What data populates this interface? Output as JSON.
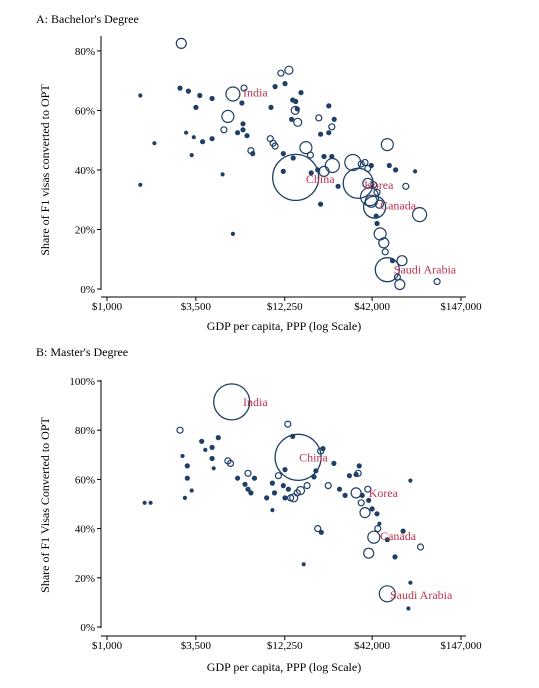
{
  "chart_data": [
    {
      "type": "scatter",
      "panel_title": "A: Bachelor's Degree",
      "xlabel": "GDP per capita, PPP (log Scale)",
      "ylabel": "Share of F1 visas converted to OPT",
      "x_scale": "log",
      "xlim": [
        1000,
        147000
      ],
      "ylim": [
        0,
        0.85
      ],
      "x_ticks": [
        1000,
        3500,
        12250,
        42000,
        147000
      ],
      "x_tick_labels": [
        "$1,000",
        "$3,500",
        "$12,250",
        "$42,000",
        "$147,000"
      ],
      "y_ticks": [
        0,
        0.2,
        0.4,
        0.6,
        0.8
      ],
      "y_tick_labels": [
        "0%",
        "20%",
        "40%",
        "60%",
        "80%"
      ],
      "bubble_size": "number of F1 visas",
      "marker_color": "#1f3f66",
      "label_color": "#c0334d",
      "labels": [
        {
          "text": "India",
          "x": 6800,
          "y": 0.66
        },
        {
          "text": "China",
          "x": 16500,
          "y": 0.37
        },
        {
          "text": "Korea",
          "x": 37500,
          "y": 0.35
        },
        {
          "text": "Canada",
          "x": 47000,
          "y": 0.28
        },
        {
          "text": "Saudi Arabia",
          "x": 57000,
          "y": 0.065
        }
      ],
      "points": [
        {
          "x": 2850,
          "y": 0.825,
          "r": 5
        },
        {
          "x": 1600,
          "y": 0.65,
          "r": 1.5
        },
        {
          "x": 1950,
          "y": 0.49,
          "r": 1.5
        },
        {
          "x": 1600,
          "y": 0.35,
          "r": 1.5
        },
        {
          "x": 2800,
          "y": 0.675,
          "r": 2
        },
        {
          "x": 3150,
          "y": 0.665,
          "r": 2
        },
        {
          "x": 3700,
          "y": 0.65,
          "r": 2
        },
        {
          "x": 4400,
          "y": 0.64,
          "r": 2
        },
        {
          "x": 3500,
          "y": 0.61,
          "r": 2
        },
        {
          "x": 3050,
          "y": 0.525,
          "r": 1.5
        },
        {
          "x": 3400,
          "y": 0.51,
          "r": 1.5
        },
        {
          "x": 3850,
          "y": 0.495,
          "r": 2
        },
        {
          "x": 3300,
          "y": 0.45,
          "r": 1.5
        },
        {
          "x": 4400,
          "y": 0.505,
          "r": 2
        },
        {
          "x": 5100,
          "y": 0.385,
          "r": 1.5
        },
        {
          "x": 5900,
          "y": 0.185,
          "r": 1.5
        },
        {
          "x": 5200,
          "y": 0.535,
          "r": 3
        },
        {
          "x": 5500,
          "y": 0.58,
          "r": 6
        },
        {
          "x": 5900,
          "y": 0.655,
          "r": 7
        },
        {
          "x": 6900,
          "y": 0.675,
          "r": 3
        },
        {
          "x": 6700,
          "y": 0.625,
          "r": 2
        },
        {
          "x": 6300,
          "y": 0.525,
          "r": 2
        },
        {
          "x": 6800,
          "y": 0.535,
          "r": 2
        },
        {
          "x": 7200,
          "y": 0.515,
          "r": 2
        },
        {
          "x": 6800,
          "y": 0.555,
          "r": 2
        },
        {
          "x": 7600,
          "y": 0.465,
          "r": 3
        },
        {
          "x": 7800,
          "y": 0.455,
          "r": 2
        },
        {
          "x": 10000,
          "y": 0.505,
          "r": 3
        },
        {
          "x": 10400,
          "y": 0.49,
          "r": 3
        },
        {
          "x": 10700,
          "y": 0.48,
          "r": 3
        },
        {
          "x": 10100,
          "y": 0.61,
          "r": 2
        },
        {
          "x": 10700,
          "y": 0.68,
          "r": 2
        },
        {
          "x": 12300,
          "y": 0.69,
          "r": 2
        },
        {
          "x": 11600,
          "y": 0.725,
          "r": 3
        },
        {
          "x": 13000,
          "y": 0.735,
          "r": 4
        },
        {
          "x": 13700,
          "y": 0.635,
          "r": 2
        },
        {
          "x": 14300,
          "y": 0.63,
          "r": 2
        },
        {
          "x": 14200,
          "y": 0.6,
          "r": 4
        },
        {
          "x": 14600,
          "y": 0.605,
          "r": 2
        },
        {
          "x": 13500,
          "y": 0.57,
          "r": 2
        },
        {
          "x": 14700,
          "y": 0.56,
          "r": 4
        },
        {
          "x": 15400,
          "y": 0.66,
          "r": 2
        },
        {
          "x": 12000,
          "y": 0.455,
          "r": 2
        },
        {
          "x": 13800,
          "y": 0.44,
          "r": 2
        },
        {
          "x": 12000,
          "y": 0.395,
          "r": 2
        },
        {
          "x": 16500,
          "y": 0.475,
          "r": 6
        },
        {
          "x": 17600,
          "y": 0.45,
          "r": 3
        },
        {
          "x": 19800,
          "y": 0.575,
          "r": 3
        },
        {
          "x": 20300,
          "y": 0.52,
          "r": 2
        },
        {
          "x": 22800,
          "y": 0.615,
          "r": 2
        },
        {
          "x": 23800,
          "y": 0.545,
          "r": 3
        },
        {
          "x": 22800,
          "y": 0.525,
          "r": 2
        },
        {
          "x": 21300,
          "y": 0.445,
          "r": 2
        },
        {
          "x": 23800,
          "y": 0.445,
          "r": 2
        },
        {
          "x": 24600,
          "y": 0.57,
          "r": 2
        },
        {
          "x": 14300,
          "y": 0.375,
          "r": 23
        },
        {
          "x": 17800,
          "y": 0.39,
          "r": 2
        },
        {
          "x": 19500,
          "y": 0.4,
          "r": 2
        },
        {
          "x": 21300,
          "y": 0.395,
          "r": 5
        },
        {
          "x": 24000,
          "y": 0.415,
          "r": 7
        },
        {
          "x": 20300,
          "y": 0.285,
          "r": 2
        },
        {
          "x": 26000,
          "y": 0.345,
          "r": 2
        },
        {
          "x": 32000,
          "y": 0.425,
          "r": 8
        },
        {
          "x": 36000,
          "y": 0.42,
          "r": 3
        },
        {
          "x": 38000,
          "y": 0.425,
          "r": 3
        },
        {
          "x": 39500,
          "y": 0.405,
          "r": 3
        },
        {
          "x": 41500,
          "y": 0.415,
          "r": 2
        },
        {
          "x": 34500,
          "y": 0.355,
          "r": 15
        },
        {
          "x": 39500,
          "y": 0.355,
          "r": 5
        },
        {
          "x": 43000,
          "y": 0.35,
          "r": 3
        },
        {
          "x": 45000,
          "y": 0.325,
          "r": 3
        },
        {
          "x": 40500,
          "y": 0.31,
          "r": 9
        },
        {
          "x": 41500,
          "y": 0.295,
          "r": 6
        },
        {
          "x": 43500,
          "y": 0.275,
          "r": 11
        },
        {
          "x": 46500,
          "y": 0.285,
          "r": 4
        },
        {
          "x": 44500,
          "y": 0.245,
          "r": 2
        },
        {
          "x": 45000,
          "y": 0.22,
          "r": 2
        },
        {
          "x": 47000,
          "y": 0.185,
          "r": 6
        },
        {
          "x": 52000,
          "y": 0.485,
          "r": 6
        },
        {
          "x": 53500,
          "y": 0.415,
          "r": 2
        },
        {
          "x": 58500,
          "y": 0.4,
          "r": 2
        },
        {
          "x": 49500,
          "y": 0.155,
          "r": 5
        },
        {
          "x": 50500,
          "y": 0.125,
          "r": 3
        },
        {
          "x": 52000,
          "y": 0.065,
          "r": 12
        },
        {
          "x": 56000,
          "y": 0.095,
          "r": 2
        },
        {
          "x": 67500,
          "y": 0.345,
          "r": 3
        },
        {
          "x": 77000,
          "y": 0.395,
          "r": 1.5
        },
        {
          "x": 64000,
          "y": 0.095,
          "r": 5
        },
        {
          "x": 60000,
          "y": 0.04,
          "r": 3
        },
        {
          "x": 82000,
          "y": 0.25,
          "r": 7
        },
        {
          "x": 62000,
          "y": 0.015,
          "r": 5
        },
        {
          "x": 105000,
          "y": 0.025,
          "r": 3
        }
      ]
    },
    {
      "type": "scatter",
      "panel_title": "B: Master's Degree",
      "xlabel": "GDP per capita, PPP (log Scale)",
      "ylabel": "Share of F1 Visas Converted to OPT",
      "x_scale": "log",
      "xlim": [
        1000,
        147000
      ],
      "ylim": [
        0,
        1.0
      ],
      "x_ticks": [
        1000,
        3500,
        12250,
        42000,
        147000
      ],
      "x_tick_labels": [
        "$1,000",
        "$3,500",
        "$12,250",
        "$42,000",
        "$147,000"
      ],
      "y_ticks": [
        0,
        0.2,
        0.4,
        0.6,
        0.8,
        1.0
      ],
      "y_tick_labels": [
        "0%",
        "20%",
        "40%",
        "60%",
        "80%",
        "100%"
      ],
      "bubble_size": "number of F1 visas",
      "marker_color": "#1f3f66",
      "label_color": "#c0334d",
      "labels": [
        {
          "text": "India",
          "x": 6800,
          "y": 0.915
        },
        {
          "text": "China",
          "x": 15000,
          "y": 0.69
        },
        {
          "text": "Korea",
          "x": 40000,
          "y": 0.545
        },
        {
          "text": "Canada",
          "x": 47000,
          "y": 0.37
        },
        {
          "text": "Saudi Arabia",
          "x": 54000,
          "y": 0.13
        }
      ],
      "points": [
        {
          "x": 5800,
          "y": 0.915,
          "r": 18
        },
        {
          "x": 2800,
          "y": 0.8,
          "r": 3
        },
        {
          "x": 2900,
          "y": 0.695,
          "r": 1.5
        },
        {
          "x": 3800,
          "y": 0.755,
          "r": 2
        },
        {
          "x": 4400,
          "y": 0.73,
          "r": 2
        },
        {
          "x": 3100,
          "y": 0.655,
          "r": 2
        },
        {
          "x": 4800,
          "y": 0.77,
          "r": 2
        },
        {
          "x": 4000,
          "y": 0.72,
          "r": 1.5
        },
        {
          "x": 4400,
          "y": 0.685,
          "r": 2
        },
        {
          "x": 4500,
          "y": 0.645,
          "r": 1.5
        },
        {
          "x": 3100,
          "y": 0.605,
          "r": 2
        },
        {
          "x": 3300,
          "y": 0.555,
          "r": 1.5
        },
        {
          "x": 3000,
          "y": 0.525,
          "r": 1.5
        },
        {
          "x": 1700,
          "y": 0.505,
          "r": 1.5
        },
        {
          "x": 1850,
          "y": 0.505,
          "r": 1.5
        },
        {
          "x": 5500,
          "y": 0.675,
          "r": 3
        },
        {
          "x": 5700,
          "y": 0.665,
          "r": 3
        },
        {
          "x": 6300,
          "y": 0.605,
          "r": 2
        },
        {
          "x": 7300,
          "y": 0.625,
          "r": 3
        },
        {
          "x": 7000,
          "y": 0.58,
          "r": 2
        },
        {
          "x": 7300,
          "y": 0.56,
          "r": 2
        },
        {
          "x": 7600,
          "y": 0.545,
          "r": 2
        },
        {
          "x": 8000,
          "y": 0.605,
          "r": 2
        },
        {
          "x": 9500,
          "y": 0.525,
          "r": 2
        },
        {
          "x": 10300,
          "y": 0.475,
          "r": 1.5
        },
        {
          "x": 10600,
          "y": 0.545,
          "r": 2
        },
        {
          "x": 10300,
          "y": 0.585,
          "r": 2
        },
        {
          "x": 12000,
          "y": 0.575,
          "r": 2
        },
        {
          "x": 11200,
          "y": 0.615,
          "r": 3
        },
        {
          "x": 12300,
          "y": 0.64,
          "r": 2
        },
        {
          "x": 12800,
          "y": 0.825,
          "r": 3
        },
        {
          "x": 13700,
          "y": 0.775,
          "r": 2
        },
        {
          "x": 12900,
          "y": 0.56,
          "r": 2
        },
        {
          "x": 12300,
          "y": 0.525,
          "r": 2
        },
        {
          "x": 13300,
          "y": 0.525,
          "r": 3
        },
        {
          "x": 13900,
          "y": 0.525,
          "r": 4
        },
        {
          "x": 14600,
          "y": 0.545,
          "r": 3
        },
        {
          "x": 15300,
          "y": 0.555,
          "r": 4
        },
        {
          "x": 16800,
          "y": 0.575,
          "r": 3
        },
        {
          "x": 14800,
          "y": 0.69,
          "r": 23
        },
        {
          "x": 18500,
          "y": 0.61,
          "r": 2
        },
        {
          "x": 20300,
          "y": 0.715,
          "r": 3
        },
        {
          "x": 21000,
          "y": 0.725,
          "r": 2
        },
        {
          "x": 19000,
          "y": 0.635,
          "r": 2
        },
        {
          "x": 16000,
          "y": 0.255,
          "r": 1.5
        },
        {
          "x": 22600,
          "y": 0.575,
          "r": 3
        },
        {
          "x": 19500,
          "y": 0.4,
          "r": 3
        },
        {
          "x": 20500,
          "y": 0.385,
          "r": 2
        },
        {
          "x": 24500,
          "y": 0.665,
          "r": 2
        },
        {
          "x": 26500,
          "y": 0.56,
          "r": 2
        },
        {
          "x": 28700,
          "y": 0.535,
          "r": 2
        },
        {
          "x": 30500,
          "y": 0.615,
          "r": 2
        },
        {
          "x": 33500,
          "y": 0.62,
          "r": 2
        },
        {
          "x": 34500,
          "y": 0.625,
          "r": 3
        },
        {
          "x": 35000,
          "y": 0.655,
          "r": 2
        },
        {
          "x": 33500,
          "y": 0.545,
          "r": 5
        },
        {
          "x": 36000,
          "y": 0.505,
          "r": 3
        },
        {
          "x": 38000,
          "y": 0.465,
          "r": 5
        },
        {
          "x": 36500,
          "y": 0.535,
          "r": 2
        },
        {
          "x": 39500,
          "y": 0.56,
          "r": 3
        },
        {
          "x": 40000,
          "y": 0.515,
          "r": 2
        },
        {
          "x": 42000,
          "y": 0.48,
          "r": 2
        },
        {
          "x": 45000,
          "y": 0.46,
          "r": 2
        },
        {
          "x": 46500,
          "y": 0.42,
          "r": 1.5
        },
        {
          "x": 45500,
          "y": 0.4,
          "r": 3
        },
        {
          "x": 43000,
          "y": 0.365,
          "r": 6
        },
        {
          "x": 40000,
          "y": 0.3,
          "r": 5
        },
        {
          "x": 52000,
          "y": 0.355,
          "r": 2
        },
        {
          "x": 52000,
          "y": 0.135,
          "r": 8
        },
        {
          "x": 58000,
          "y": 0.285,
          "r": 2
        },
        {
          "x": 65000,
          "y": 0.39,
          "r": 2
        },
        {
          "x": 72000,
          "y": 0.595,
          "r": 1.5
        },
        {
          "x": 83000,
          "y": 0.325,
          "r": 3
        },
        {
          "x": 72000,
          "y": 0.18,
          "r": 1.5
        },
        {
          "x": 70000,
          "y": 0.075,
          "r": 1.5
        }
      ]
    }
  ]
}
